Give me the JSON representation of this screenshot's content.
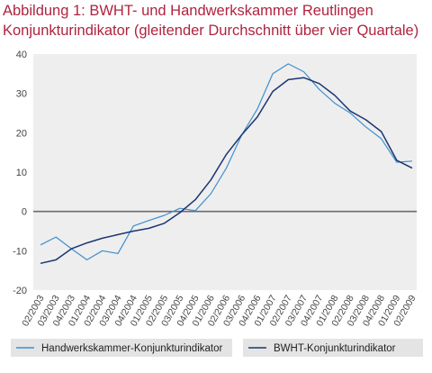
{
  "colors": {
    "title": "#b0233f",
    "series_light": "#3f8fcd",
    "series_dark": "#1c3573",
    "plot_bg": "#eeeeee",
    "zero_line": "#6b6b6b",
    "legend_bg": "#e4e4e4"
  },
  "chart_data": {
    "type": "line",
    "title": "Abbildung 1: BWHT- und Handwerkskammer  Reutlingen",
    "subtitle": "Konjunkturindikator (gleitender Durchschnitt über vier Quartale)",
    "xlabel": "",
    "ylabel": "",
    "ylim": [
      -20,
      40
    ],
    "yticks": [
      40,
      30,
      20,
      10,
      0,
      -10,
      -20
    ],
    "grid": false,
    "legend_position": "bottom",
    "categories": [
      "02/2003",
      "03/2003",
      "04/2003",
      "01/2004",
      "02/2004",
      "03/2004",
      "04/2004",
      "01/2005",
      "02/2005",
      "03/2005",
      "04/2005",
      "01/2006",
      "02/2006",
      "03/2006",
      "04/2006",
      "01/2007",
      "02/2007",
      "03/2007",
      "04/2007",
      "01/2008",
      "02/2008",
      "03/2008",
      "04/2008",
      "01/2009",
      "02/2009"
    ],
    "series": [
      {
        "name": "Handwerkskammer-Konjunkturindikator",
        "color": "#3f8fcd",
        "values": [
          -8.5,
          -6.5,
          -9.5,
          -12.3,
          -10.0,
          -10.7,
          -3.7,
          -2.3,
          -1.0,
          0.8,
          0.2,
          4.5,
          11.0,
          19.5,
          26.0,
          35.0,
          37.5,
          35.5,
          31.0,
          27.5,
          25.0,
          21.5,
          18.5,
          12.5,
          12.8
        ]
      },
      {
        "name": "BWHT-Konjunkturindikator",
        "color": "#1c3573",
        "values": [
          -13.2,
          -12.3,
          -9.5,
          -8.0,
          -6.8,
          -5.9,
          -5.0,
          -4.3,
          -3.0,
          -0.3,
          3.0,
          8.0,
          14.5,
          19.5,
          24.0,
          30.5,
          33.5,
          34.0,
          32.5,
          29.5,
          25.5,
          23.3,
          20.3,
          13.0,
          11.0
        ]
      }
    ]
  }
}
